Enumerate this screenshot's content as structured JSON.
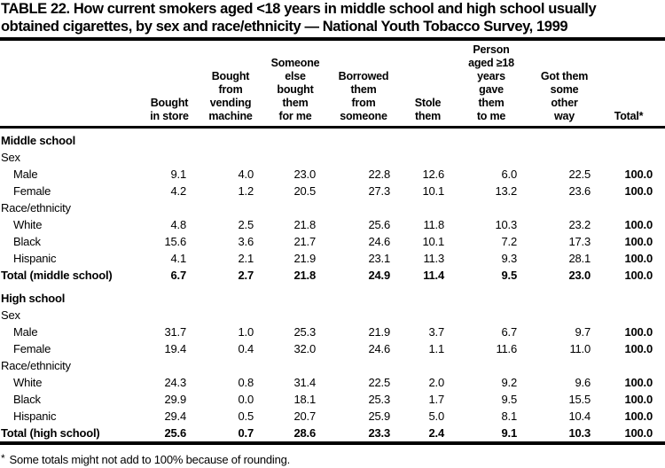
{
  "page": {
    "background": "#ffffff",
    "text_color": "#000000",
    "rule_color": "#000000"
  },
  "title": "TABLE 22. How current smokers aged <18 years in middle school and high school usually\nobtained cigarettes, by sex and race/ethnicity — National Youth Tobacco Survey, 1999",
  "table": {
    "stub_header": "",
    "columns": [
      "Bought\nin store",
      "Bought\nfrom\nvending\nmachine",
      "Someone\nelse\nbought\nthem\nfor me",
      "Borrowed\nthem\nfrom\nsomeone",
      "Stole\nthem",
      "Person\naged ≥18\nyears\ngave\nthem\nto me",
      "Got them\nsome\nother\nway",
      "Total*"
    ],
    "rows": [
      {
        "type": "section",
        "label": "Middle school",
        "indent": false,
        "first": true,
        "space": false,
        "values": []
      },
      {
        "type": "subhead",
        "label": "Sex",
        "indent": false,
        "first": false,
        "space": false,
        "values": []
      },
      {
        "type": "data",
        "label": "Male",
        "indent": true,
        "first": false,
        "space": false,
        "values": [
          "9.1",
          "4.0",
          "23.0",
          "22.8",
          "12.6",
          "6.0",
          "22.5",
          "100.0"
        ]
      },
      {
        "type": "data",
        "label": "Female",
        "indent": true,
        "first": false,
        "space": false,
        "values": [
          "4.2",
          "1.2",
          "20.5",
          "27.3",
          "10.1",
          "13.2",
          "23.6",
          "100.0"
        ]
      },
      {
        "type": "subhead",
        "label": "Race/ethnicity",
        "indent": false,
        "first": false,
        "space": false,
        "values": []
      },
      {
        "type": "data",
        "label": "White",
        "indent": true,
        "first": false,
        "space": false,
        "values": [
          "4.8",
          "2.5",
          "21.8",
          "25.6",
          "11.8",
          "10.3",
          "23.2",
          "100.0"
        ]
      },
      {
        "type": "data",
        "label": "Black",
        "indent": true,
        "first": false,
        "space": false,
        "values": [
          "15.6",
          "3.6",
          "21.7",
          "24.6",
          "10.1",
          "7.2",
          "17.3",
          "100.0"
        ]
      },
      {
        "type": "data",
        "label": "Hispanic",
        "indent": true,
        "first": false,
        "space": false,
        "values": [
          "4.1",
          "2.1",
          "21.9",
          "23.1",
          "11.3",
          "9.3",
          "28.1",
          "100.0"
        ]
      },
      {
        "type": "total",
        "label": "Total (middle school)",
        "indent": false,
        "first": false,
        "space": false,
        "values": [
          "6.7",
          "2.7",
          "21.8",
          "24.9",
          "11.4",
          "9.5",
          "23.0",
          "100.0"
        ]
      },
      {
        "type": "section",
        "label": "High school",
        "indent": false,
        "first": false,
        "space": true,
        "values": []
      },
      {
        "type": "subhead",
        "label": "Sex",
        "indent": false,
        "first": false,
        "space": false,
        "values": []
      },
      {
        "type": "data",
        "label": "Male",
        "indent": true,
        "first": false,
        "space": false,
        "values": [
          "31.7",
          "1.0",
          "25.3",
          "21.9",
          "3.7",
          "6.7",
          "9.7",
          "100.0"
        ]
      },
      {
        "type": "data",
        "label": "Female",
        "indent": true,
        "first": false,
        "space": false,
        "values": [
          "19.4",
          "0.4",
          "32.0",
          "24.6",
          "1.1",
          "11.6",
          "11.0",
          "100.0"
        ]
      },
      {
        "type": "subhead",
        "label": "Race/ethnicity",
        "indent": false,
        "first": false,
        "space": false,
        "values": []
      },
      {
        "type": "data",
        "label": "White",
        "indent": true,
        "first": false,
        "space": false,
        "values": [
          "24.3",
          "0.8",
          "31.4",
          "22.5",
          "2.0",
          "9.2",
          "9.6",
          "100.0"
        ]
      },
      {
        "type": "data",
        "label": "Black",
        "indent": true,
        "first": false,
        "space": false,
        "values": [
          "29.9",
          "0.0",
          "18.1",
          "25.3",
          "1.7",
          "9.5",
          "15.5",
          "100.0"
        ]
      },
      {
        "type": "data",
        "label": "Hispanic",
        "indent": true,
        "first": false,
        "space": false,
        "values": [
          "29.4",
          "0.5",
          "20.7",
          "25.9",
          "5.0",
          "8.1",
          "10.4",
          "100.0"
        ]
      },
      {
        "type": "total",
        "label": "Total (high school)",
        "indent": false,
        "first": false,
        "space": false,
        "values": [
          "25.6",
          "0.7",
          "28.6",
          "23.3",
          "2.4",
          "9.1",
          "10.3",
          "100.0"
        ]
      }
    ]
  },
  "footnote": {
    "mark": "*",
    "text": "Some totals might not add to 100% because of rounding."
  }
}
